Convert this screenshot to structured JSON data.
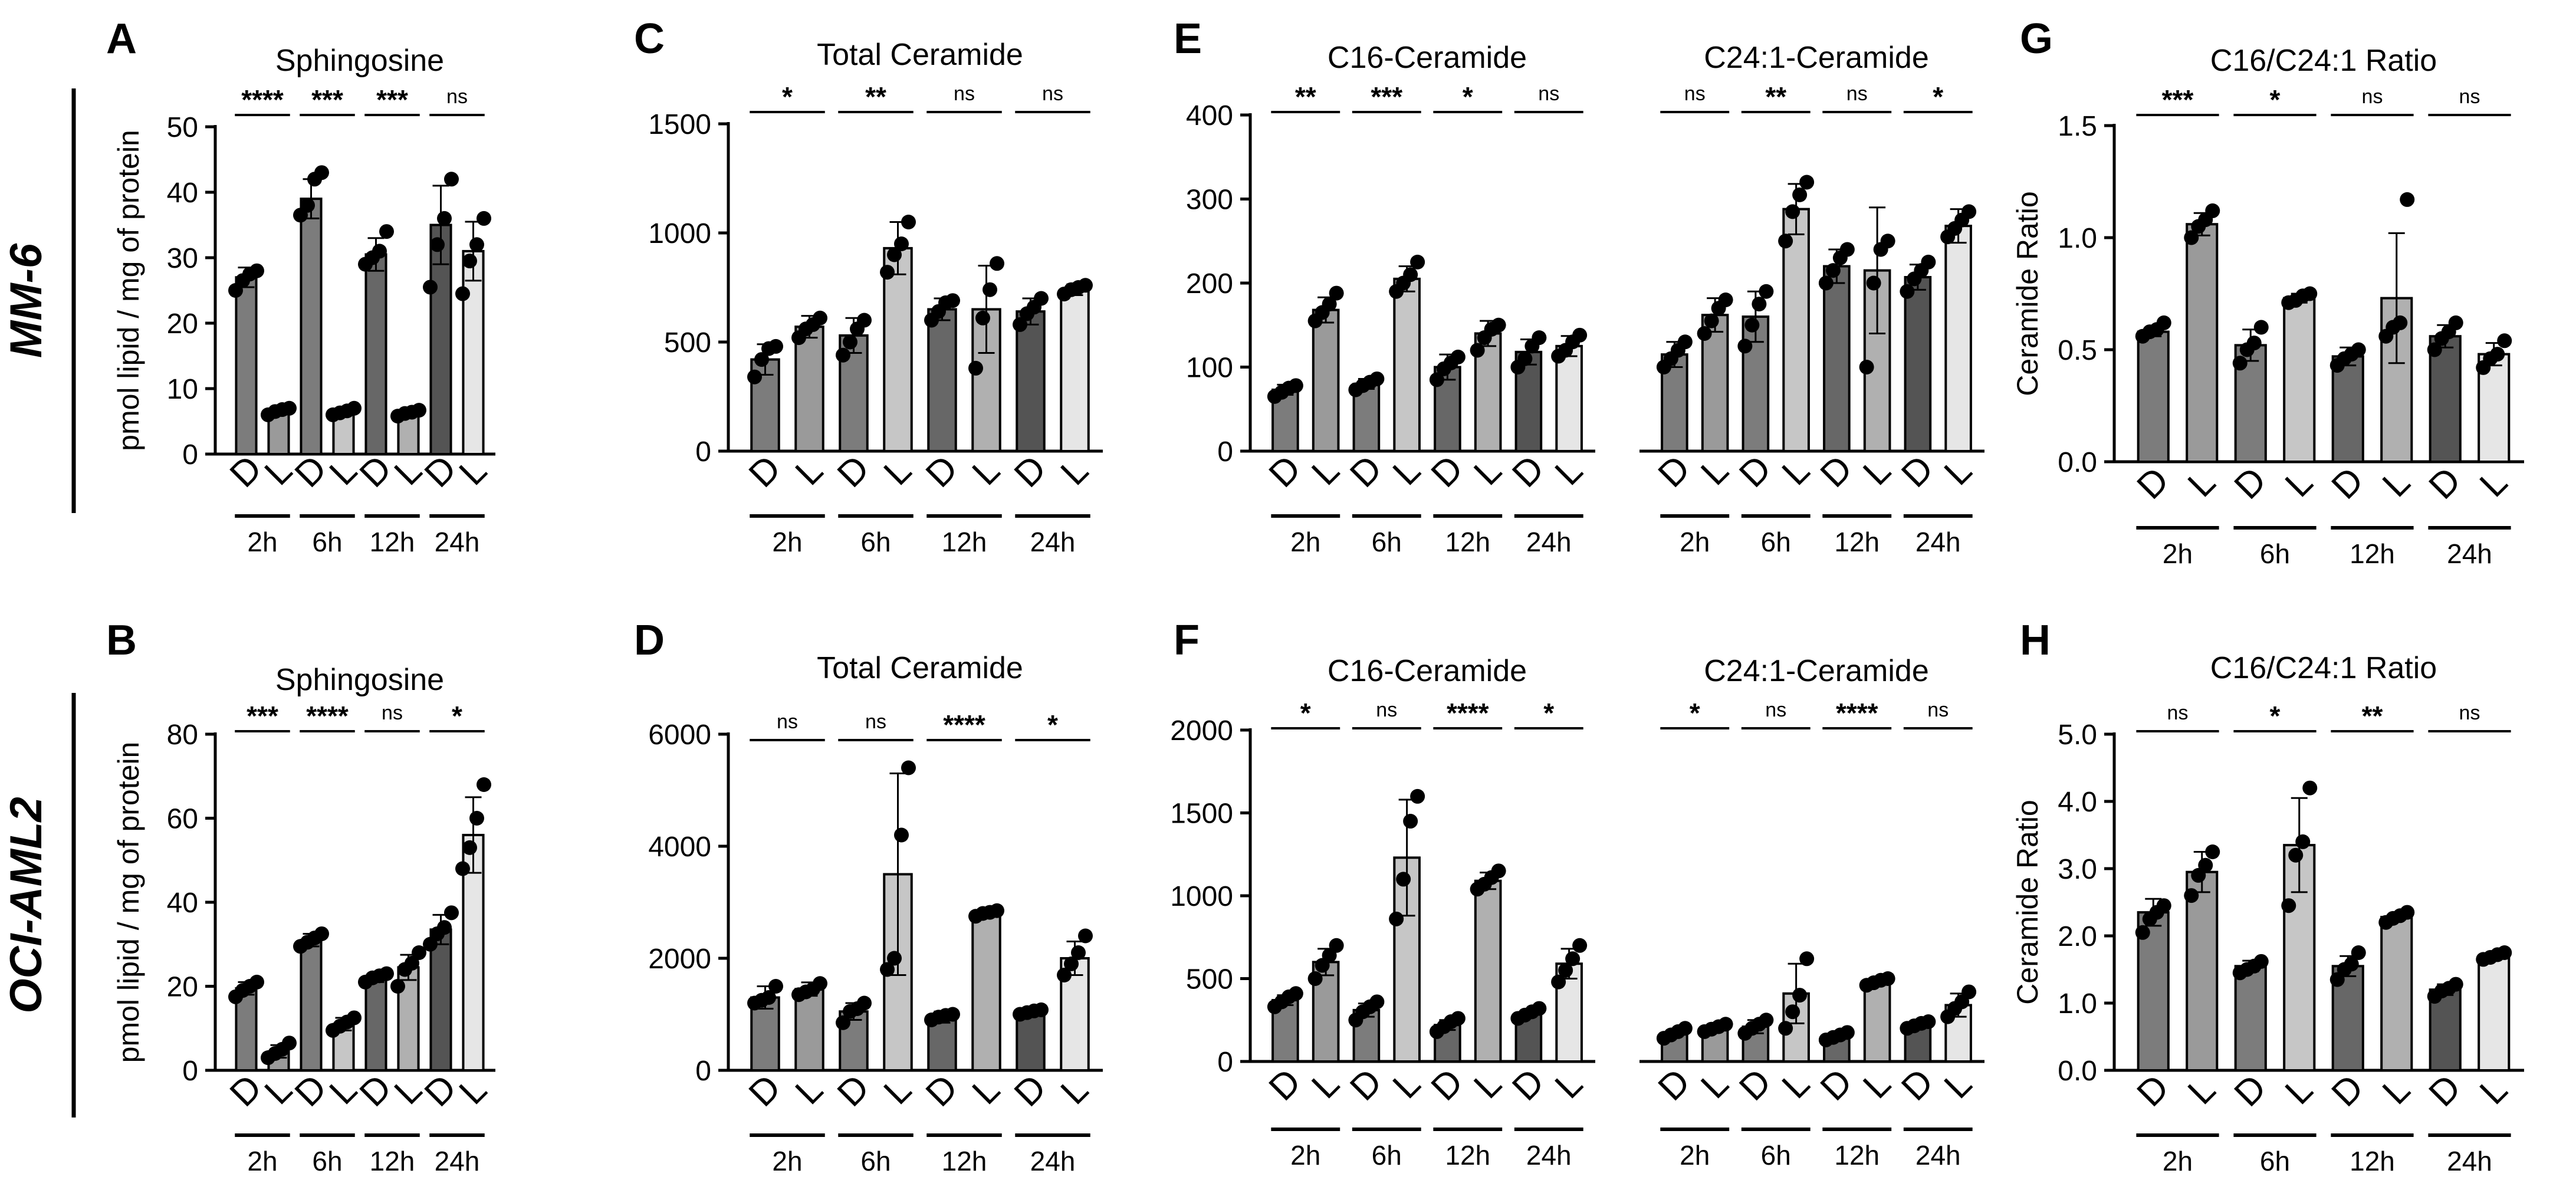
{
  "row_labels": {
    "top": "MM-6",
    "bottom": "OCI-AML2"
  },
  "bar_colors": {
    "D2": "#7c7c7c",
    "L2": "#9a9a9a",
    "D6": "#7c7c7c",
    "L6": "#c6c6c6",
    "D12": "#676767",
    "L12": "#b0b0b0",
    "D24": "#545454",
    "L24": "#e6e6e6"
  },
  "chart_data": [
    {
      "panel": "A",
      "type": "bar",
      "title": "Sphingosine",
      "ylabel": "pmol lipid / mg of protein",
      "ylim": [
        0,
        50
      ],
      "yticks": [
        "0",
        "10",
        "20",
        "30",
        "40",
        "50"
      ],
      "categories": [
        "D",
        "L",
        "D",
        "L",
        "D",
        "L",
        "D",
        "L"
      ],
      "groups": [
        "2h",
        "6h",
        "12h",
        "24h"
      ],
      "values": [
        27,
        6.5,
        39,
        6.5,
        30.5,
        6.3,
        35,
        31
      ],
      "errors": [
        1.5,
        0.5,
        3,
        0.5,
        2.5,
        0.5,
        6,
        4.5
      ],
      "points": [
        [
          25,
          26.5,
          27.5,
          28
        ],
        [
          6,
          6.5,
          6.8,
          7
        ],
        [
          36.5,
          38,
          42,
          43
        ],
        [
          6,
          6.3,
          6.6,
          7
        ],
        [
          29,
          30,
          31,
          34
        ],
        [
          5.8,
          6.2,
          6.4,
          6.7
        ],
        [
          25.5,
          32,
          36,
          42
        ],
        [
          24.5,
          29.5,
          32,
          36
        ]
      ],
      "significance": [
        "****",
        "***",
        "***",
        "ns"
      ]
    },
    {
      "panel": "C",
      "type": "bar",
      "title": "Total Ceramide",
      "ylabel": "",
      "ylim": [
        0,
        1500
      ],
      "yticks": [
        "0",
        "500",
        "1000",
        "1500"
      ],
      "categories": [
        "D",
        "L",
        "D",
        "L",
        "D",
        "L",
        "D",
        "L"
      ],
      "groups": [
        "2h",
        "6h",
        "12h",
        "24h"
      ],
      "values": [
        420,
        570,
        530,
        930,
        650,
        650,
        640,
        740
      ],
      "errors": [
        70,
        50,
        80,
        120,
        50,
        200,
        60,
        25
      ],
      "points": [
        [
          340,
          420,
          470,
          480
        ],
        [
          520,
          560,
          580,
          610
        ],
        [
          440,
          500,
          560,
          600
        ],
        [
          820,
          900,
          950,
          1050
        ],
        [
          600,
          640,
          680,
          690
        ],
        [
          380,
          610,
          740,
          860
        ],
        [
          580,
          630,
          660,
          700
        ],
        [
          720,
          740,
          750,
          760
        ]
      ],
      "significance": [
        "*",
        "**",
        "ns",
        "ns"
      ]
    },
    {
      "panel": "E",
      "type": "bar",
      "title": "C16-Ceramide",
      "ylabel": "",
      "ylim": [
        0,
        400
      ],
      "yticks": [
        "0",
        "100",
        "200",
        "300",
        "400"
      ],
      "categories": [
        "D",
        "L",
        "D",
        "L",
        "D",
        "L",
        "D",
        "L"
      ],
      "groups": [
        "2h",
        "6h",
        "12h",
        "24h"
      ],
      "values": [
        73,
        168,
        80,
        205,
        100,
        140,
        118,
        125
      ],
      "errors": [
        6,
        15,
        6,
        15,
        15,
        15,
        15,
        12
      ],
      "points": [
        [
          65,
          70,
          75,
          78
        ],
        [
          155,
          165,
          175,
          188
        ],
        [
          73,
          78,
          82,
          86
        ],
        [
          190,
          200,
          210,
          225
        ],
        [
          85,
          98,
          105,
          112
        ],
        [
          120,
          135,
          145,
          150
        ],
        [
          100,
          110,
          125,
          135
        ],
        [
          113,
          120,
          130,
          138
        ]
      ],
      "significance": [
        "**",
        "***",
        "*",
        "ns"
      ]
    },
    {
      "panel": "E2",
      "type": "bar",
      "title": "C24:1-Ceramide",
      "ylabel": "",
      "ylim": [
        0,
        400
      ],
      "yticks": [],
      "categories": [
        "D",
        "L",
        "D",
        "L",
        "D",
        "L",
        "D",
        "L"
      ],
      "groups": [
        "2h",
        "6h",
        "12h",
        "24h"
      ],
      "values": [
        115,
        162,
        160,
        288,
        220,
        215,
        207,
        268
      ],
      "errors": [
        15,
        20,
        30,
        30,
        20,
        75,
        15,
        20
      ],
      "points": [
        [
          100,
          110,
          120,
          130
        ],
        [
          140,
          155,
          170,
          180
        ],
        [
          125,
          150,
          175,
          190
        ],
        [
          250,
          285,
          305,
          320
        ],
        [
          200,
          215,
          230,
          240
        ],
        [
          100,
          200,
          240,
          250
        ],
        [
          190,
          205,
          215,
          225
        ],
        [
          255,
          265,
          275,
          285
        ]
      ],
      "significance": [
        "ns",
        "**",
        "ns",
        "*"
      ]
    },
    {
      "panel": "G",
      "type": "bar",
      "title": "C16/C24:1 Ratio",
      "ylabel": "Ceramide Ratio",
      "ylim": [
        0,
        1.5
      ],
      "yticks": [
        "0.0",
        "0.5",
        "1.0",
        "1.5"
      ],
      "categories": [
        "D",
        "L",
        "D",
        "L",
        "D",
        "L",
        "D",
        "L"
      ],
      "groups": [
        "2h",
        "6h",
        "12h",
        "24h"
      ],
      "values": [
        0.58,
        1.06,
        0.52,
        0.73,
        0.47,
        0.73,
        0.56,
        0.48
      ],
      "errors": [
        0.02,
        0.05,
        0.07,
        0.02,
        0.04,
        0.29,
        0.05,
        0.05
      ],
      "points": [
        [
          0.56,
          0.58,
          0.59,
          0.62
        ],
        [
          1.0,
          1.05,
          1.08,
          1.12
        ],
        [
          0.44,
          0.5,
          0.53,
          0.6
        ],
        [
          0.71,
          0.72,
          0.74,
          0.75
        ],
        [
          0.43,
          0.46,
          0.48,
          0.5
        ],
        [
          0.56,
          0.6,
          0.62,
          1.17
        ],
        [
          0.5,
          0.55,
          0.58,
          0.62
        ],
        [
          0.42,
          0.46,
          0.48,
          0.54
        ]
      ],
      "significance": [
        "***",
        "*",
        "ns",
        "ns"
      ]
    },
    {
      "panel": "B",
      "type": "bar",
      "title": "Sphingosine",
      "ylabel": "pmol lipid / mg of protein",
      "ylim": [
        0,
        80
      ],
      "yticks": [
        "0",
        "20",
        "40",
        "60",
        "80"
      ],
      "categories": [
        "D",
        "L",
        "D",
        "L",
        "D",
        "L",
        "D",
        "L"
      ],
      "groups": [
        "2h",
        "6h",
        "12h",
        "24h"
      ],
      "values": [
        19.5,
        4.5,
        31,
        11,
        22,
        24.5,
        33.5,
        56
      ],
      "errors": [
        1.5,
        1.5,
        1.5,
        1.5,
        1,
        3,
        3.5,
        9
      ],
      "points": [
        [
          17.5,
          19,
          20,
          21
        ],
        [
          3,
          4,
          5,
          6.5
        ],
        [
          29.5,
          30.5,
          31.5,
          32.5
        ],
        [
          9.5,
          10.5,
          11.5,
          12.5
        ],
        [
          21,
          22,
          22.5,
          23
        ],
        [
          20,
          24,
          25.5,
          28
        ],
        [
          30,
          32.5,
          34,
          37.5
        ],
        [
          48,
          53,
          60,
          68
        ]
      ],
      "significance": [
        "***",
        "****",
        "ns",
        "*"
      ]
    },
    {
      "panel": "D",
      "type": "bar",
      "title": "Total Ceramide",
      "ylabel": "",
      "ylim": [
        0,
        6000
      ],
      "yticks": [
        "0",
        "2000",
        "4000",
        "6000"
      ],
      "categories": [
        "D",
        "L",
        "D",
        "L",
        "D",
        "L",
        "D",
        "L"
      ],
      "groups": [
        "2h",
        "6h",
        "12h",
        "24h"
      ],
      "values": [
        1300,
        1450,
        1050,
        3500,
        950,
        2800,
        1050,
        2000
      ],
      "errors": [
        200,
        120,
        150,
        1800,
        100,
        50,
        40,
        300
      ],
      "points": [
        [
          1200,
          1250,
          1300,
          1500
        ],
        [
          1350,
          1400,
          1450,
          1550
        ],
        [
          850,
          1050,
          1100,
          1200
        ],
        [
          1800,
          2000,
          4200,
          5400
        ],
        [
          900,
          950,
          980,
          1000
        ],
        [
          2750,
          2800,
          2820,
          2850
        ],
        [
          1000,
          1030,
          1060,
          1080
        ],
        [
          1700,
          1900,
          2100,
          2400
        ]
      ],
      "significance": [
        "ns",
        "ns",
        "****",
        "*"
      ]
    },
    {
      "panel": "F",
      "type": "bar",
      "title": "C16-Ceramide",
      "ylabel": "",
      "ylim": [
        0,
        2000
      ],
      "yticks": [
        "0",
        "500",
        "1000",
        "1500",
        "2000"
      ],
      "categories": [
        "D",
        "L",
        "D",
        "L",
        "D",
        "L",
        "D",
        "L"
      ],
      "groups": [
        "2h",
        "6h",
        "12h",
        "24h"
      ],
      "values": [
        370,
        600,
        310,
        1230,
        220,
        1090,
        290,
        590
      ],
      "errors": [
        30,
        80,
        40,
        350,
        30,
        50,
        20,
        90
      ],
      "points": [
        [
          330,
          360,
          390,
          410
        ],
        [
          500,
          580,
          640,
          700
        ],
        [
          250,
          300,
          330,
          360
        ],
        [
          860,
          1100,
          1450,
          1600
        ],
        [
          180,
          210,
          240,
          260
        ],
        [
          1040,
          1070,
          1110,
          1150
        ],
        [
          260,
          280,
          300,
          320
        ],
        [
          480,
          550,
          620,
          700
        ]
      ],
      "significance": [
        "*",
        "ns",
        "****",
        "*"
      ]
    },
    {
      "panel": "F2",
      "type": "bar",
      "title": "C24:1-Ceramide",
      "ylabel": "",
      "ylim": [
        0,
        2000
      ],
      "yticks": [],
      "categories": [
        "D",
        "L",
        "D",
        "L",
        "D",
        "L",
        "D",
        "L"
      ],
      "groups": [
        "2h",
        "6h",
        "12h",
        "24h"
      ],
      "values": [
        170,
        200,
        210,
        410,
        150,
        480,
        220,
        340
      ],
      "errors": [
        20,
        20,
        40,
        180,
        20,
        20,
        20,
        70
      ],
      "points": [
        [
          140,
          160,
          180,
          200
        ],
        [
          180,
          195,
          210,
          225
        ],
        [
          170,
          200,
          225,
          250
        ],
        [
          200,
          300,
          400,
          620
        ],
        [
          130,
          145,
          160,
          175
        ],
        [
          460,
          475,
          490,
          500
        ],
        [
          200,
          215,
          230,
          240
        ],
        [
          270,
          320,
          360,
          420
        ]
      ],
      "significance": [
        "*",
        "ns",
        "****",
        "ns"
      ]
    },
    {
      "panel": "H",
      "type": "bar",
      "title": "C16/C24:1 Ratio",
      "ylabel": "Ceramide Ratio",
      "ylim": [
        0,
        5
      ],
      "yticks": [
        "0.0",
        "1.0",
        "2.0",
        "3.0",
        "4.0",
        "5.0"
      ],
      "categories": [
        "D",
        "L",
        "D",
        "L",
        "D",
        "L",
        "D",
        "L"
      ],
      "groups": [
        "2h",
        "6h",
        "12h",
        "24h"
      ],
      "values": [
        2.35,
        2.95,
        1.55,
        3.35,
        1.55,
        2.28,
        1.2,
        1.7
      ],
      "errors": [
        0.2,
        0.3,
        0.08,
        0.7,
        0.15,
        0.05,
        0.08,
        0.04
      ],
      "points": [
        [
          2.05,
          2.25,
          2.35,
          2.45
        ],
        [
          2.6,
          2.9,
          3.05,
          3.25
        ],
        [
          1.45,
          1.5,
          1.55,
          1.62
        ],
        [
          2.45,
          3.2,
          3.4,
          4.2
        ],
        [
          1.35,
          1.5,
          1.58,
          1.75
        ],
        [
          2.2,
          2.26,
          2.3,
          2.35
        ],
        [
          1.1,
          1.18,
          1.22,
          1.28
        ],
        [
          1.65,
          1.68,
          1.72,
          1.75
        ]
      ],
      "significance": [
        "ns",
        "*",
        "**",
        "ns"
      ]
    }
  ]
}
